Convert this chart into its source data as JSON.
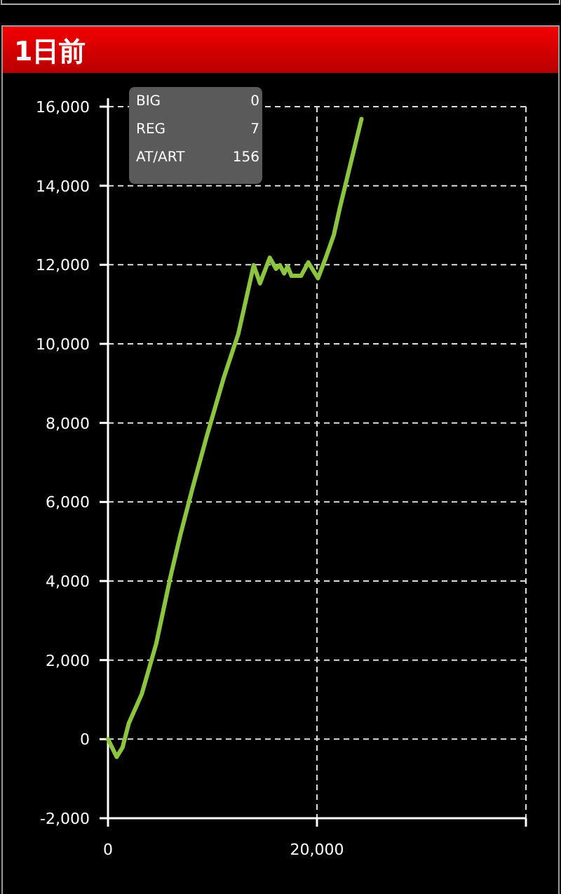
{
  "chart_data": {
    "type": "line",
    "title": "1日前",
    "x": [
      0,
      830,
      1390,
      1990,
      3230,
      4620,
      6000,
      6930,
      8080,
      9470,
      11090,
      12470,
      13950,
      14550,
      15480,
      16080,
      16450,
      16860,
      17190,
      17560,
      18480,
      19170,
      20100,
      20790,
      21620,
      22180,
      24260
    ],
    "values": [
      0,
      -450,
      -210,
      400,
      1140,
      2420,
      4130,
      5170,
      6340,
      7680,
      9150,
      10250,
      11990,
      11530,
      12180,
      11900,
      11990,
      11780,
      11960,
      11720,
      11720,
      12060,
      11660,
      12140,
      12760,
      13430,
      15690
    ],
    "color": "#8cc63e",
    "xlim": [
      0,
      40000
    ],
    "xticks": [
      {
        "value": 0,
        "label": "0"
      },
      {
        "value": 20000,
        "label": "20,000"
      },
      {
        "value": 40000,
        "label": null
      }
    ],
    "ylim": [
      -2000,
      16000
    ],
    "yticks": [
      {
        "value": -2000,
        "label": "-2,000"
      },
      {
        "value": 0,
        "label": "0"
      },
      {
        "value": 2000,
        "label": "2,000"
      },
      {
        "value": 4000,
        "label": "4,000"
      },
      {
        "value": 6000,
        "label": "6,000"
      },
      {
        "value": 8000,
        "label": "8,000"
      },
      {
        "value": 10000,
        "label": "10,000"
      },
      {
        "value": 12000,
        "label": "12,000"
      },
      {
        "value": 14000,
        "label": "14,000"
      },
      {
        "value": 16000,
        "label": "16,000"
      }
    ],
    "grid": true,
    "annotations": [
      "BIG",
      "0",
      "REG",
      "7",
      "AT/ART",
      "156"
    ]
  }
}
